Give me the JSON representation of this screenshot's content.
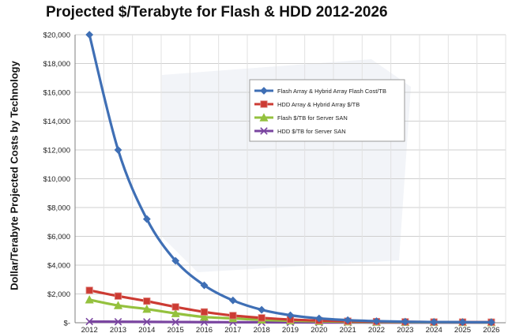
{
  "chart_data": {
    "type": "line",
    "title": "Projected $/Terabyte for Flash & HDD 2012-2026",
    "xlabel": "",
    "ylabel": "Dollar/Terabyte Projected Costs by Technology",
    "categories": [
      "2012",
      "2013",
      "2014",
      "2015",
      "2016",
      "2017",
      "2018",
      "2019",
      "2020",
      "2021",
      "2022",
      "2023",
      "2024",
      "2025",
      "2026"
    ],
    "ylim": [
      0,
      20000
    ],
    "y_ticks": [
      0,
      2000,
      4000,
      6000,
      8000,
      10000,
      12000,
      14000,
      16000,
      18000,
      20000
    ],
    "y_tick_labels": [
      "$-",
      "$2,000",
      "$4,000",
      "$6,000",
      "$8,000",
      "$10,000",
      "$12,000",
      "$14,000",
      "$16,000",
      "$18,000",
      "$20,000"
    ],
    "grid": true,
    "legend_position": "right",
    "series": [
      {
        "name": "Flash Array & Hybrid Array Flash Cost/TB",
        "color": "#3f6fb5",
        "marker": "diamond",
        "values": [
          20000,
          12000,
          7200,
          4300,
          2600,
          1550,
          900,
          520,
          300,
          180,
          110,
          70,
          50,
          40,
          35
        ]
      },
      {
        "name": "HDD Array & Hybrid Array $/TB",
        "color": "#cc3b33",
        "marker": "square",
        "values": [
          2250,
          1850,
          1500,
          1100,
          750,
          500,
          340,
          220,
          150,
          110,
          80,
          60,
          50,
          45,
          40
        ]
      },
      {
        "name": "Flash $/TB for Server SAN",
        "color": "#94c13e",
        "marker": "triangle",
        "values": [
          1600,
          1200,
          950,
          650,
          400,
          300,
          200,
          140,
          100,
          70,
          50,
          40,
          30,
          25,
          20
        ]
      },
      {
        "name": "HDD $/TB for Server SAN",
        "color": "#7a45a0",
        "marker": "x",
        "values": [
          80,
          70,
          60,
          50,
          40,
          35,
          30,
          25,
          20,
          18,
          15,
          12,
          10,
          10,
          10
        ]
      }
    ]
  }
}
